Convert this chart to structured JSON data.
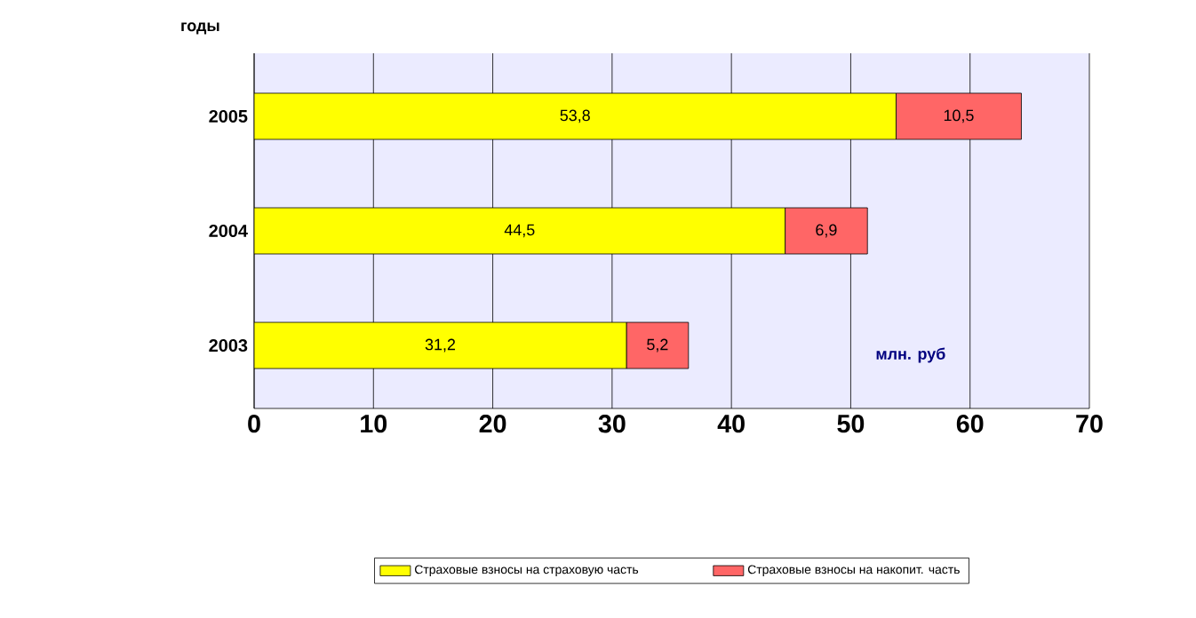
{
  "chart_data": {
    "type": "bar",
    "orientation": "horizontal",
    "stacked": true,
    "ylabel": "годы",
    "categories": [
      "2005",
      "2004",
      "2003"
    ],
    "series": [
      {
        "name": "Страховые взносы на страховую часть",
        "color": "#ffff00",
        "values": [
          53.8,
          44.5,
          31.2
        ],
        "value_labels": [
          "53,8",
          "44,5",
          "31,2"
        ]
      },
      {
        "name": "Страховые взносы на накопит. часть",
        "color": "#ff6666",
        "values": [
          10.5,
          6.9,
          5.2
        ],
        "value_labels": [
          "10,5",
          "6,9",
          "5,2"
        ]
      }
    ],
    "xlim": [
      0,
      70
    ],
    "xticks": [
      0,
      10,
      20,
      30,
      40,
      50,
      60,
      70
    ],
    "grid": "x",
    "legend": "bottom",
    "annotations": [
      "млн. руб"
    ]
  }
}
